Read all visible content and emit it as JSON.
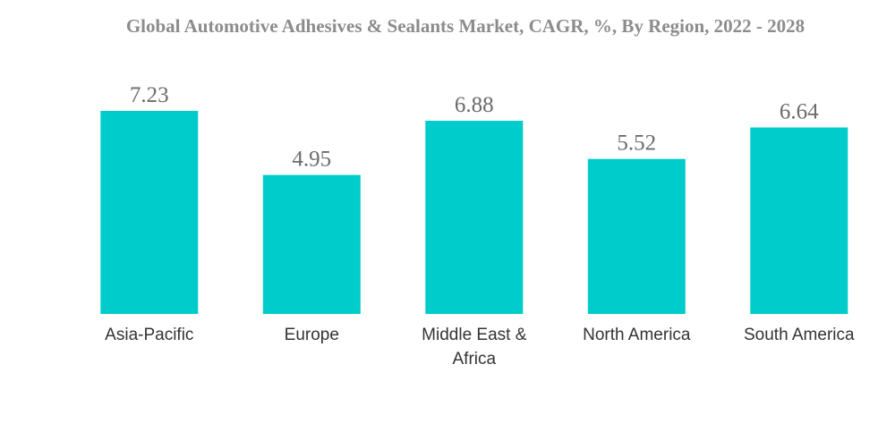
{
  "chart_data": {
    "type": "bar",
    "title": "Global Automotive Adhesives & Sealants Market, CAGR, %, By Region, 2022 - 2028",
    "categories": [
      [
        "Asia-Pacific"
      ],
      [
        "Europe"
      ],
      [
        "Middle East &",
        "Africa"
      ],
      [
        "North America"
      ],
      [
        "South America"
      ]
    ],
    "values": [
      7.23,
      4.95,
      6.88,
      5.52,
      6.64
    ],
    "value_labels": [
      "7.23",
      "4.95",
      "6.88",
      "5.52",
      "6.64"
    ],
    "xlabel": "",
    "ylabel": "",
    "ylim": [
      0,
      7.23
    ],
    "grid": false,
    "bar_color": "#00cccc"
  }
}
